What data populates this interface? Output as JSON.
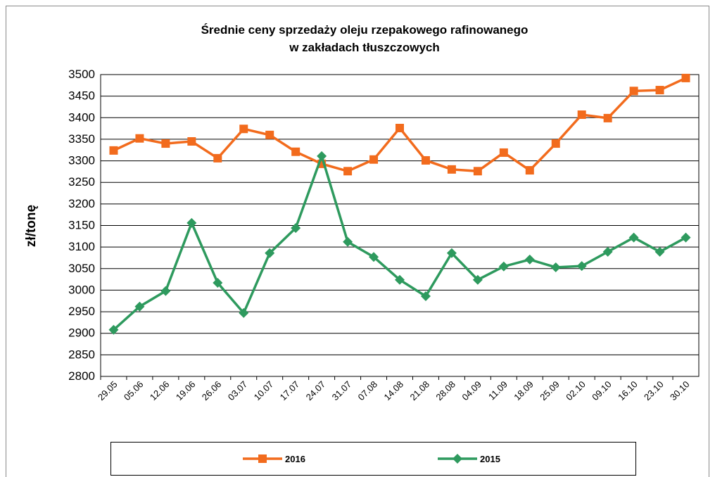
{
  "chart_data": {
    "type": "line",
    "title": "Średnie ceny sprzedaży oleju rzepakowego rafinowanego",
    "subtitle": "w zakładach tłuszczowych",
    "y_label": "zł/tonę",
    "categories": [
      "29.05",
      "05.06",
      "12.06",
      "19.06",
      "26.06",
      "03.07",
      "10.07",
      "17.07",
      "24.07",
      "31.07",
      "07.08",
      "14.08",
      "21.08",
      "28.08",
      "04.09",
      "11.09",
      "18.09",
      "25.09",
      "02.10",
      "09.10",
      "16.10",
      "23.10",
      "30.10"
    ],
    "series": [
      {
        "name": "2016",
        "color": "#f26b1d",
        "marker": "square",
        "values": [
          3324,
          3352,
          3340,
          3345,
          3306,
          3374,
          3360,
          3321,
          3293,
          3276,
          3303,
          3376,
          3301,
          3280,
          3276,
          3319,
          3278,
          3340,
          3407,
          3399,
          3462,
          3464,
          3492
        ]
      },
      {
        "name": "2015",
        "color": "#2e9a5e",
        "marker": "diamond",
        "values": [
          2908,
          2962,
          2998,
          3156,
          3017,
          2947,
          3086,
          3144,
          3311,
          3112,
          3077,
          3024,
          2986,
          3086,
          3024,
          3055,
          3071,
          3053,
          3056,
          3089,
          3122,
          3089,
          3122
        ]
      }
    ],
    "ylim": [
      2800,
      3500
    ],
    "yticks": [
      2800,
      2850,
      2900,
      2950,
      3000,
      3050,
      3100,
      3150,
      3200,
      3250,
      3300,
      3350,
      3400,
      3450,
      3500
    ],
    "grid": true,
    "legend": "bottom"
  }
}
